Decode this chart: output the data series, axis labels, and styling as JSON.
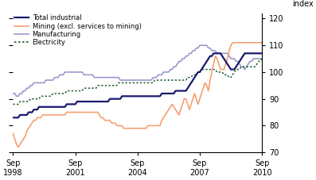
{
  "ylabel_right": "index",
  "ylim": [
    70,
    122
  ],
  "yticks": [
    70,
    80,
    90,
    100,
    110,
    120
  ],
  "xtick_labels": [
    "Sep\n1998",
    "Sep\n2001",
    "Sep\n2004",
    "Sep\n2007",
    "Sep\n2010"
  ],
  "xtick_positions": [
    0,
    36,
    72,
    108,
    144
  ],
  "total_months": 145,
  "series": {
    "Total industrial": {
      "color": "#1a1a6e",
      "linewidth": 1.6,
      "linestyle": "solid",
      "values": [
        83,
        83,
        83,
        83,
        84,
        84,
        84,
        84,
        84,
        85,
        85,
        85,
        86,
        86,
        86,
        87,
        87,
        87,
        87,
        87,
        87,
        87,
        87,
        87,
        87,
        87,
        87,
        87,
        87,
        87,
        87,
        88,
        88,
        88,
        88,
        88,
        88,
        89,
        89,
        89,
        89,
        89,
        89,
        89,
        89,
        89,
        89,
        89,
        89,
        89,
        89,
        89,
        89,
        89,
        89,
        89,
        90,
        90,
        90,
        90,
        90,
        90,
        90,
        91,
        91,
        91,
        91,
        91,
        91,
        91,
        91,
        91,
        91,
        91,
        91,
        91,
        91,
        91,
        91,
        91,
        91,
        91,
        91,
        91,
        91,
        91,
        92,
        92,
        92,
        92,
        92,
        92,
        92,
        92,
        93,
        93,
        93,
        93,
        93,
        93,
        93,
        94,
        95,
        96,
        97,
        98,
        99,
        100,
        100,
        101,
        102,
        103,
        104,
        105,
        106,
        106,
        107,
        107,
        107,
        107,
        107,
        106,
        105,
        104,
        103,
        102,
        101,
        101,
        101,
        102,
        103,
        104,
        105,
        106,
        107,
        107,
        107,
        107,
        107,
        107,
        107,
        107,
        107,
        107,
        107
      ]
    },
    "Mining": {
      "color": "#F4A070",
      "linewidth": 1.2,
      "linestyle": "solid",
      "values": [
        77,
        75,
        73,
        72,
        73,
        74,
        75,
        76,
        78,
        79,
        80,
        81,
        82,
        82,
        83,
        83,
        83,
        84,
        84,
        84,
        84,
        84,
        84,
        84,
        84,
        84,
        84,
        84,
        84,
        84,
        84,
        85,
        85,
        85,
        85,
        85,
        85,
        85,
        85,
        85,
        85,
        85,
        85,
        85,
        85,
        85,
        85,
        85,
        85,
        85,
        84,
        83,
        83,
        82,
        82,
        82,
        82,
        81,
        81,
        81,
        80,
        80,
        80,
        80,
        79,
        79,
        79,
        79,
        79,
        79,
        79,
        79,
        79,
        79,
        79,
        79,
        79,
        79,
        80,
        80,
        80,
        80,
        80,
        80,
        80,
        80,
        82,
        83,
        84,
        85,
        86,
        87,
        88,
        87,
        86,
        85,
        84,
        86,
        88,
        90,
        90,
        88,
        86,
        88,
        90,
        92,
        90,
        88,
        90,
        92,
        94,
        96,
        95,
        93,
        97,
        100,
        103,
        106,
        105,
        103,
        101,
        101,
        101,
        103,
        105,
        108,
        110,
        111,
        111,
        111,
        111,
        111,
        111,
        111,
        111,
        111,
        111,
        111,
        111,
        111,
        111,
        111,
        111,
        111,
        111
      ]
    },
    "Manufacturing": {
      "color": "#9999cc",
      "linewidth": 1.2,
      "linestyle": "solid",
      "values": [
        92,
        92,
        91,
        91,
        92,
        92,
        93,
        93,
        94,
        94,
        95,
        95,
        96,
        96,
        96,
        96,
        96,
        96,
        96,
        97,
        97,
        97,
        97,
        97,
        98,
        98,
        98,
        99,
        99,
        99,
        100,
        100,
        100,
        100,
        100,
        100,
        100,
        100,
        100,
        100,
        100,
        99,
        99,
        99,
        99,
        99,
        99,
        98,
        98,
        98,
        98,
        98,
        98,
        98,
        98,
        98,
        98,
        98,
        98,
        98,
        98,
        98,
        97,
        97,
        97,
        97,
        97,
        97,
        97,
        97,
        97,
        97,
        97,
        97,
        97,
        97,
        97,
        97,
        97,
        97,
        97,
        98,
        98,
        98,
        99,
        99,
        99,
        100,
        100,
        100,
        100,
        101,
        101,
        102,
        102,
        103,
        104,
        104,
        105,
        105,
        106,
        106,
        107,
        107,
        108,
        108,
        109,
        109,
        110,
        110,
        110,
        110,
        110,
        109,
        109,
        108,
        108,
        108,
        107,
        107,
        107,
        107,
        107,
        107,
        107,
        106,
        105,
        105,
        105,
        104,
        104,
        103,
        102,
        102,
        101,
        102,
        103,
        104,
        104,
        105,
        105,
        105,
        105,
        105,
        105
      ]
    },
    "Electricity": {
      "color": "#1a5c2a",
      "linewidth": 1.1,
      "linestyle": "dotted",
      "values": [
        88,
        88,
        88,
        88,
        89,
        89,
        89,
        89,
        89,
        89,
        90,
        90,
        90,
        90,
        90,
        90,
        91,
        91,
        91,
        91,
        91,
        91,
        91,
        92,
        92,
        92,
        92,
        92,
        92,
        92,
        92,
        93,
        93,
        93,
        93,
        93,
        93,
        93,
        93,
        93,
        93,
        94,
        94,
        94,
        94,
        94,
        94,
        94,
        94,
        95,
        95,
        95,
        95,
        95,
        95,
        95,
        95,
        95,
        95,
        95,
        95,
        96,
        96,
        96,
        96,
        96,
        96,
        96,
        96,
        96,
        96,
        96,
        96,
        96,
        96,
        96,
        96,
        96,
        96,
        96,
        96,
        96,
        97,
        97,
        97,
        97,
        97,
        97,
        97,
        97,
        97,
        97,
        97,
        97,
        97,
        97,
        97,
        97,
        97,
        97,
        97,
        98,
        98,
        98,
        99,
        99,
        99,
        100,
        100,
        101,
        101,
        101,
        101,
        101,
        101,
        101,
        101,
        101,
        100,
        100,
        100,
        100,
        99,
        99,
        99,
        98,
        98,
        99,
        100,
        101,
        101,
        101,
        102,
        102,
        102,
        102,
        102,
        102,
        102,
        102,
        102,
        103,
        104,
        104,
        105
      ]
    }
  },
  "legend_labels": [
    "Total industrial",
    "Mining (excl. services to mining)",
    "Manufacturing",
    "Electricity"
  ],
  "legend_colors": [
    "#1a1a6e",
    "#F4A070",
    "#9999cc",
    "#1a5c2a"
  ],
  "legend_linestyles": [
    "solid",
    "solid",
    "solid",
    "dotted"
  ],
  "background_color": "#ffffff"
}
